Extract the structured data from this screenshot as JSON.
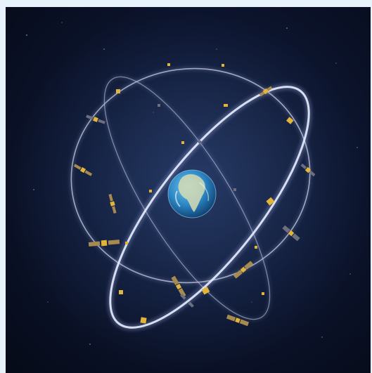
{
  "image": {
    "subject": "satellite-constellation-around-earth",
    "colors": {
      "space": "#0a1126",
      "orbit": "#cdd6f2",
      "satellite_body": "#e2b53a",
      "solar_panel": "#a88a4e",
      "earth_ocean": "#2b86c4",
      "earth_land": "#d6dcb4",
      "frame": "#e6f3fb"
    }
  }
}
